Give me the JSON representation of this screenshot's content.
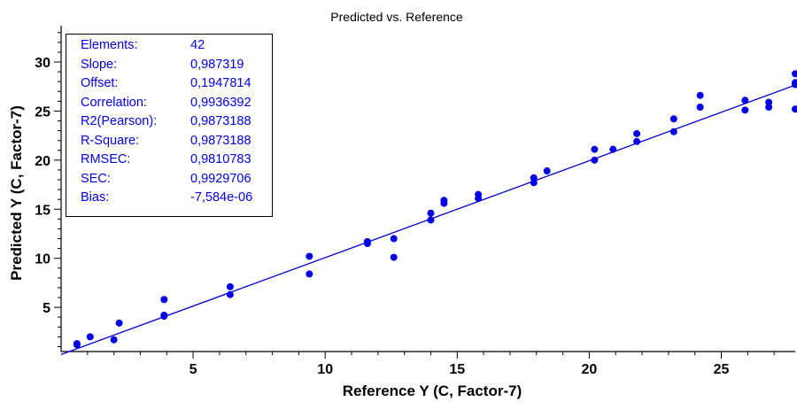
{
  "chart_data": {
    "type": "scatter",
    "title": "Predicted vs. Reference",
    "xlabel": "Reference Y (C, Factor-7)",
    "ylabel": "Predicted Y (C, Factor-7)",
    "xlim": [
      0,
      27.8
    ],
    "ylim": [
      0.5,
      33.7
    ],
    "xticks": [
      5,
      10,
      15,
      20,
      25
    ],
    "yticks": [
      5,
      10,
      15,
      20,
      25,
      30
    ],
    "grid": false,
    "colors": {
      "points": "#0000e6",
      "line": "#0000cc",
      "axes": "#000000"
    },
    "fit_line": {
      "slope": 0.987319,
      "offset": 0.1947814
    },
    "points": [
      {
        "x": 0.6,
        "y": 1.3
      },
      {
        "x": 1.1,
        "y": 2.0
      },
      {
        "x": 2.0,
        "y": 1.7
      },
      {
        "x": 2.2,
        "y": 3.4
      },
      {
        "x": 3.9,
        "y": 4.2
      },
      {
        "x": 3.9,
        "y": 5.8
      },
      {
        "x": 6.4,
        "y": 6.3
      },
      {
        "x": 6.4,
        "y": 7.1
      },
      {
        "x": 9.4,
        "y": 8.4
      },
      {
        "x": 9.4,
        "y": 10.2
      },
      {
        "x": 11.6,
        "y": 11.5
      },
      {
        "x": 11.6,
        "y": 11.7
      },
      {
        "x": 12.6,
        "y": 10.1
      },
      {
        "x": 12.6,
        "y": 12.0
      },
      {
        "x": 14.0,
        "y": 13.9
      },
      {
        "x": 14.0,
        "y": 14.6
      },
      {
        "x": 14.5,
        "y": 15.6
      },
      {
        "x": 14.5,
        "y": 15.9
      },
      {
        "x": 15.8,
        "y": 16.1
      },
      {
        "x": 15.8,
        "y": 16.5
      },
      {
        "x": 17.9,
        "y": 17.7
      },
      {
        "x": 17.9,
        "y": 18.2
      },
      {
        "x": 18.4,
        "y": 18.9
      },
      {
        "x": 20.2,
        "y": 20.0
      },
      {
        "x": 20.2,
        "y": 21.1
      },
      {
        "x": 20.9,
        "y": 21.1
      },
      {
        "x": 21.8,
        "y": 21.9
      },
      {
        "x": 21.8,
        "y": 22.7
      },
      {
        "x": 23.2,
        "y": 22.9
      },
      {
        "x": 23.2,
        "y": 24.2
      },
      {
        "x": 24.2,
        "y": 25.4
      },
      {
        "x": 24.2,
        "y": 26.6
      },
      {
        "x": 25.9,
        "y": 25.1
      },
      {
        "x": 25.9,
        "y": 26.1
      },
      {
        "x": 26.8,
        "y": 25.4
      },
      {
        "x": 26.8,
        "y": 25.9
      },
      {
        "x": 27.8,
        "y": 25.2
      },
      {
        "x": 27.8,
        "y": 27.9
      },
      {
        "x": 27.8,
        "y": 28.8
      },
      {
        "x": 27.8,
        "y": 27.7
      },
      {
        "x": 3.9,
        "y": 4.1
      },
      {
        "x": 0.6,
        "y": 1.2
      }
    ]
  },
  "stats": [
    {
      "label": "Elements:",
      "value": "42"
    },
    {
      "label": "Slope:",
      "value": "0,987319"
    },
    {
      "label": "Offset:",
      "value": "0,1947814"
    },
    {
      "label": "Correlation:",
      "value": "0,9936392"
    },
    {
      "label": "R2(Pearson):",
      "value": "0,9873188"
    },
    {
      "label": "R-Square:",
      "value": "0,9873188"
    },
    {
      "label": "RMSEC:",
      "value": "0,9810783"
    },
    {
      "label": "SEC:",
      "value": "0,9929706"
    },
    {
      "label": "Bias:",
      "value": "-7,584e-06"
    }
  ]
}
